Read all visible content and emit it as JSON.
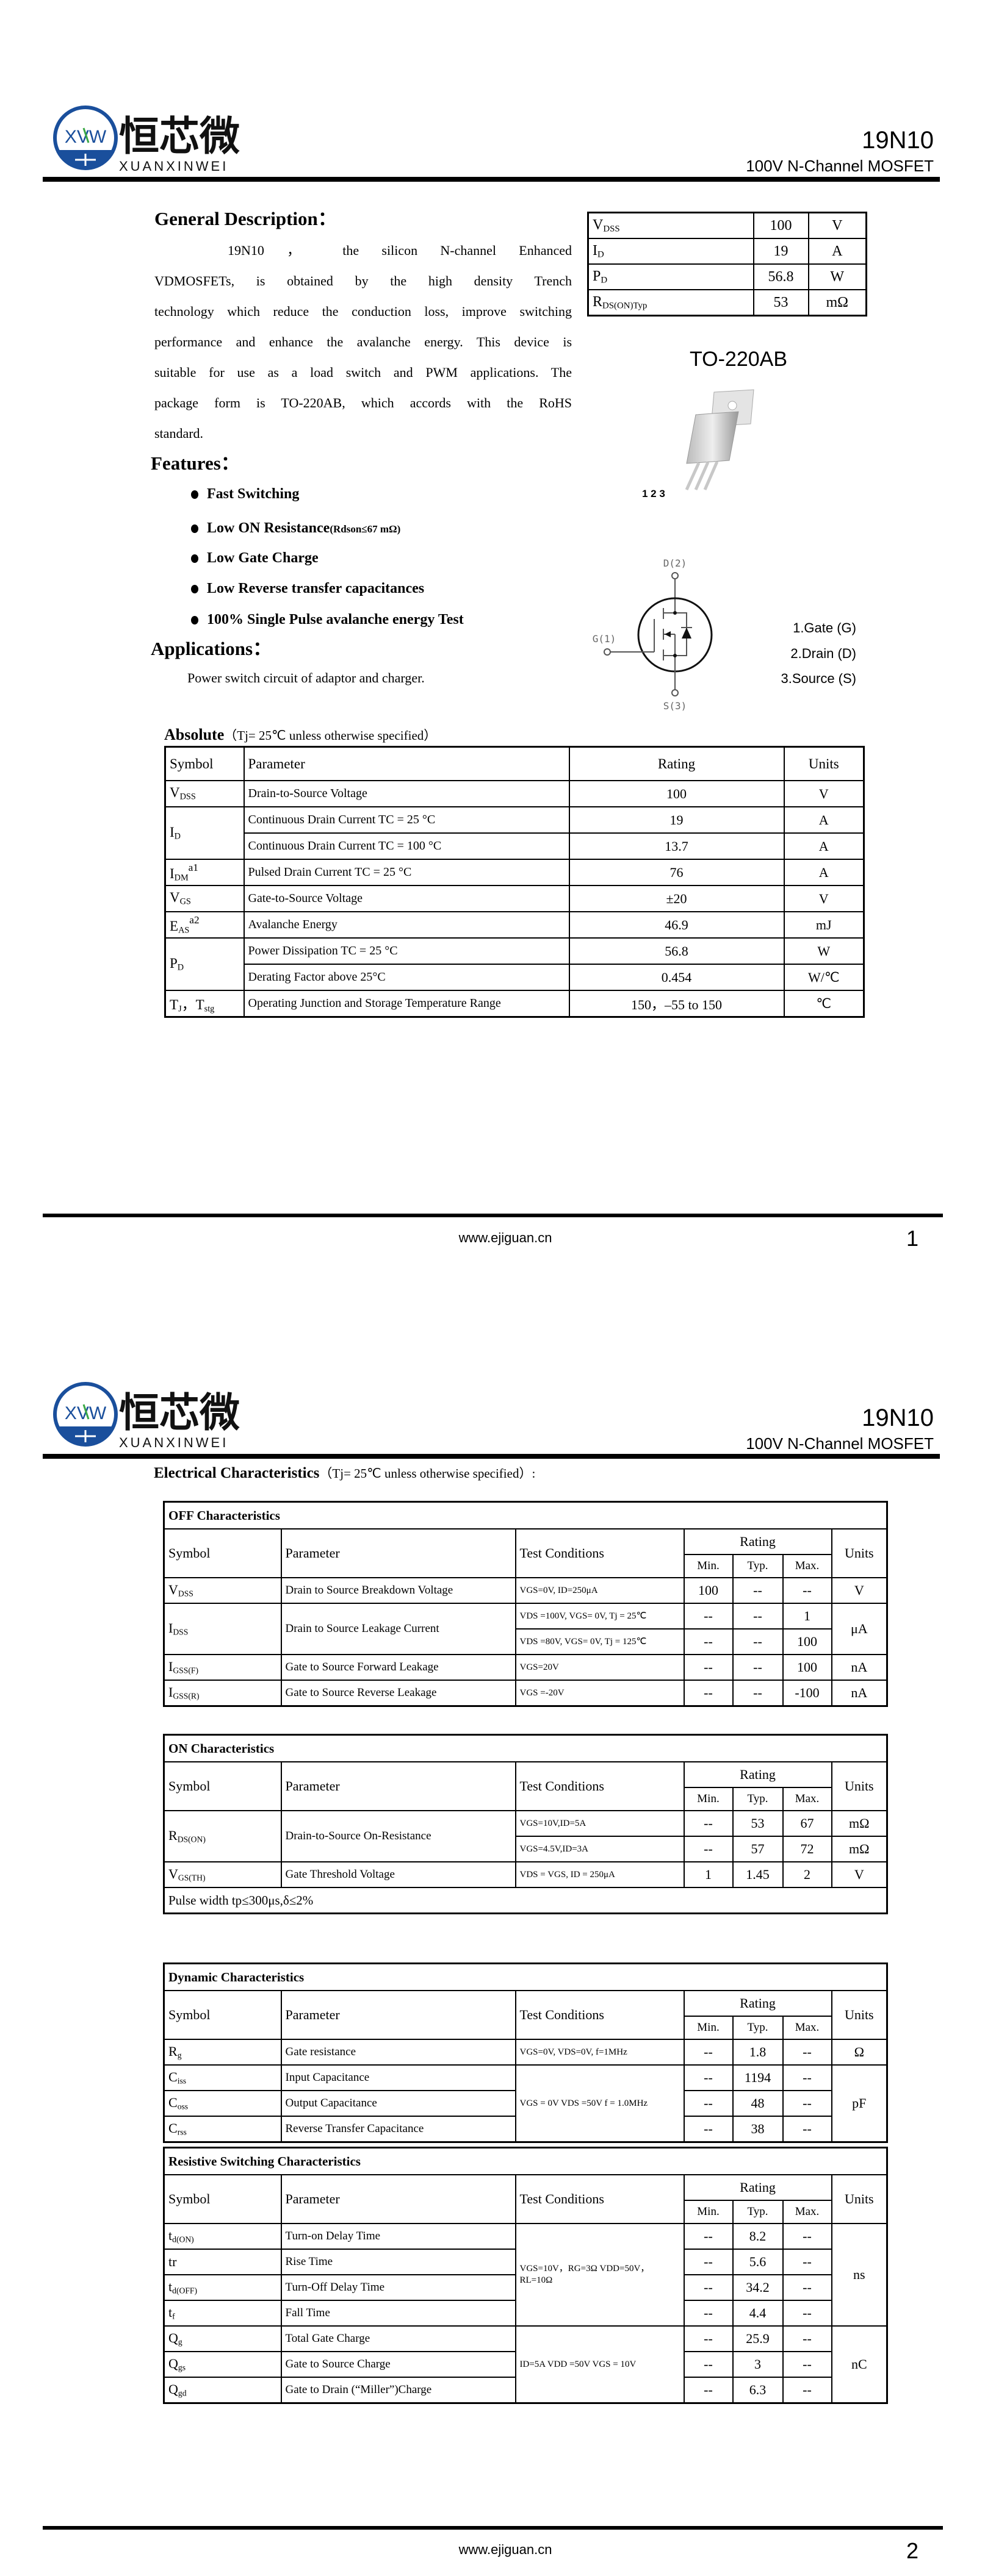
{
  "header": {
    "brand_cn": "恒芯微",
    "brand_en": "XUANXINWEI",
    "brand_mark": "XVW",
    "part_number": "19N10",
    "subtitle": "100V N-Channel MOSFET",
    "brand_color": "#1a4f9c",
    "accent_color": "#3aa845"
  },
  "page1": {
    "general_title": "General Description：",
    "general_lines": [
      "19N10 ， the silicon N-channel Enhanced",
      "VDMOSFETs, is obtained by the high density Trench",
      "technology which reduce the conduction loss, improve switching",
      "performance and enhance the avalanche energy. This device is",
      "suitable for use as a load switch and PWM applications. The",
      "package form is TO-220AB, which accords with the RoHS",
      "standard."
    ],
    "key_specs": [
      {
        "m": "V",
        "s": "DSS",
        "value": "100",
        "unit": "V"
      },
      {
        "m": "I",
        "s": "D",
        "value": "19",
        "unit": "A"
      },
      {
        "m": "P",
        "s": "D",
        "value": "56.8",
        "unit": "W"
      },
      {
        "m": "R",
        "s": "DS(ON)Typ",
        "value": "53",
        "unit": "mΩ"
      }
    ],
    "package": "TO-220AB",
    "package_pins": "1 2 3",
    "features_title": "Features：",
    "features": [
      {
        "text": "Fast Switching",
        "note": ""
      },
      {
        "text": "Low ON Resistance",
        "note": "(Rdson≤67 mΩ)"
      },
      {
        "text": "Low Gate Charge",
        "note": ""
      },
      {
        "text": "Low Reverse transfer capacitances",
        "note": ""
      },
      {
        "text": "100% Single Pulse avalanche energy Test",
        "note": ""
      }
    ],
    "applications_title": "Applications：",
    "applications_text": "Power switch circuit of adaptor and charger.",
    "symbol_labels": {
      "drain": "D(2)",
      "gate": "G(1)",
      "source": "S(3)"
    },
    "pins": [
      "1.Gate (G)",
      "2.Drain (D)",
      "3.Source (S)"
    ],
    "absolute": {
      "title_bold": "Absolute",
      "title_rest": "（Tj= 25℃  unless otherwise specified）",
      "headers": [
        "Symbol",
        "Parameter",
        "Rating",
        "Units"
      ],
      "groups": [
        {
          "shared": {
            "sym": {
              "m": "V",
              "s": "DSS"
            }
          },
          "rows": [
            {
              "param": "Drain-to-Source Voltage",
              "rating": "100",
              "unit": "V"
            }
          ]
        },
        {
          "shared": {
            "sym": {
              "m": "I",
              "s": "D"
            }
          },
          "rows": [
            {
              "param": "Continuous Drain Current TC = 25 °C",
              "rating": "19",
              "unit": "A"
            },
            {
              "param": "Continuous Drain Current TC = 100 °C",
              "rating": "13.7",
              "unit": "A"
            }
          ]
        },
        {
          "shared": {
            "sym": {
              "m": "I",
              "s": "DM",
              "sup": "a1"
            }
          },
          "rows": [
            {
              "param": "Pulsed Drain Current TC = 25 °C",
              "rating": "76",
              "unit": "A"
            }
          ]
        },
        {
          "shared": {
            "sym": {
              "m": "V",
              "s": "GS"
            }
          },
          "rows": [
            {
              "param": "Gate-to-Source Voltage",
              "rating": "±20",
              "unit": "V"
            }
          ]
        },
        {
          "shared": {
            "sym": {
              "m": "E",
              "s": "AS",
              "sup": "a2"
            }
          },
          "rows": [
            {
              "param": "Avalanche Energy",
              "rating": "46.9",
              "unit": "mJ"
            }
          ]
        },
        {
          "shared": {
            "sym": {
              "m": "P",
              "s": "D"
            }
          },
          "rows": [
            {
              "param": "Power Dissipation TC = 25 °C",
              "rating": "56.8",
              "unit": "W"
            },
            {
              "param": "Derating Factor above 25°C",
              "rating": "0.454",
              "unit": "W/℃"
            }
          ]
        },
        {
          "shared": {
            "sym": {
              "m": "T",
              "s": "J",
              "m2": "，T",
              "s2": "stg"
            }
          },
          "rows": [
            {
              "param": "Operating Junction and Storage Temperature Range",
              "rating": "150，–55 to 150",
              "unit": "℃"
            }
          ]
        }
      ]
    },
    "footer_url": "www.ejiguan.cn",
    "page_number": "1"
  },
  "page2": {
    "elec_title_bold": "Electrical Characteristics",
    "elec_title_rest": "（Tj= 25℃ unless otherwise specified）:",
    "headers": {
      "symbol": "Symbol",
      "parameter": "Parameter",
      "conditions": "Test Conditions",
      "rating": "Rating",
      "min": "Min.",
      "typ": "Typ.",
      "max": "Max.",
      "units": "Units"
    },
    "tables": [
      {
        "title": "OFF Characteristics",
        "note": "",
        "groups": [
          {
            "shared": {},
            "rows": [
              {
                "sym": {
                  "m": "V",
                  "s": "DSS"
                },
                "param": "Drain to Source Breakdown Voltage",
                "cond": "VGS=0V, ID=250μA",
                "min": "100",
                "typ": "--",
                "max": "--",
                "unit": "V"
              }
            ]
          },
          {
            "shared": {
              "sym": {
                "m": "I",
                "s": "DSS"
              },
              "param": "Drain to Source Leakage Current",
              "unit": "μA"
            },
            "rows": [
              {
                "cond": "VDS =100V, VGS= 0V, Tj = 25℃",
                "min": "--",
                "typ": "--",
                "max": "1"
              },
              {
                "cond": "VDS =80V, VGS= 0V, Tj = 125℃",
                "min": "--",
                "typ": "--",
                "max": "100"
              }
            ]
          },
          {
            "shared": {},
            "rows": [
              {
                "sym": {
                  "m": "I",
                  "s": "GSS(F)"
                },
                "param": "Gate to Source Forward Leakage",
                "cond": "VGS=20V",
                "min": "--",
                "typ": "--",
                "max": "100",
                "unit": "nA"
              }
            ]
          },
          {
            "shared": {},
            "rows": [
              {
                "sym": {
                  "m": "I",
                  "s": "GSS(R)"
                },
                "param": "Gate to Source Reverse Leakage",
                "cond": "VGS =-20V",
                "min": "--",
                "typ": "--",
                "max": "-100",
                "unit": "nA"
              }
            ]
          }
        ]
      },
      {
        "title": "ON Characteristics",
        "note": "Pulse width tp≤300μs,δ≤2%",
        "groups": [
          {
            "shared": {
              "sym": {
                "m": "R",
                "s": "DS(ON)"
              },
              "param": "Drain-to-Source On-Resistance"
            },
            "rows": [
              {
                "cond": "VGS=10V,ID=5A",
                "min": "--",
                "typ": "53",
                "max": "67",
                "unit": "mΩ"
              },
              {
                "cond": "VGS=4.5V,ID=3A",
                "min": "--",
                "typ": "57",
                "max": "72",
                "unit": "mΩ"
              }
            ]
          },
          {
            "shared": {},
            "rows": [
              {
                "sym": {
                  "m": "V",
                  "s": "GS(TH)"
                },
                "param": "Gate Threshold Voltage",
                "cond": "VDS = VGS, ID = 250μA",
                "min": "1",
                "typ": "1.45",
                "max": "2",
                "unit": "V"
              }
            ]
          }
        ]
      },
      {
        "title": "Dynamic Characteristics",
        "note": "",
        "groups": [
          {
            "shared": {},
            "rows": [
              {
                "sym": {
                  "m": "R",
                  "s": "g"
                },
                "param": "Gate resistance",
                "cond": "VGS=0V, VDS=0V, f=1MHz",
                "min": "--",
                "typ": "1.8",
                "max": "--",
                "unit": "Ω"
              }
            ]
          },
          {
            "shared": {
              "cond": "VGS = 0V VDS =50V f = 1.0MHz",
              "unit": "pF"
            },
            "rows": [
              {
                "sym": {
                  "m": "C",
                  "s": "iss"
                },
                "param": "Input Capacitance",
                "min": "--",
                "typ": "1194",
                "max": "--"
              },
              {
                "sym": {
                  "m": "C",
                  "s": "oss"
                },
                "param": "Output Capacitance",
                "min": "--",
                "typ": "48",
                "max": "--"
              },
              {
                "sym": {
                  "m": "C",
                  "s": "rss"
                },
                "param": "Reverse Transfer Capacitance",
                "min": "--",
                "typ": "38",
                "max": "--"
              }
            ]
          }
        ]
      },
      {
        "title": "Resistive Switching Characteristics",
        "note": "",
        "groups": [
          {
            "shared": {
              "cond": "VGS=10V，RG=3Ω VDD=50V，RL=10Ω",
              "unit": "ns"
            },
            "rows": [
              {
                "sym": {
                  "m": "t",
                  "s": "d(ON)"
                },
                "param": "Turn-on Delay Time",
                "min": "--",
                "typ": "8.2",
                "max": "--"
              },
              {
                "sym": {
                  "m": "tr",
                  "s": ""
                },
                "param": "Rise Time",
                "min": "--",
                "typ": "5.6",
                "max": "--"
              },
              {
                "sym": {
                  "m": "t",
                  "s": "d(OFF)"
                },
                "param": "Turn-Off Delay Time",
                "min": "--",
                "typ": "34.2",
                "max": "--"
              },
              {
                "sym": {
                  "m": "t",
                  "s": "f"
                },
                "param": "Fall Time",
                "min": "--",
                "typ": "4.4",
                "max": "--"
              }
            ]
          },
          {
            "shared": {
              "cond": "ID=5A    VDD =50V VGS = 10V",
              "unit": "nC"
            },
            "rows": [
              {
                "sym": {
                  "m": "Q",
                  "s": "g"
                },
                "param": "Total Gate Charge",
                "min": "--",
                "typ": "25.9",
                "max": "--"
              },
              {
                "sym": {
                  "m": "Q",
                  "s": "gs"
                },
                "param": "Gate to Source Charge",
                "min": "--",
                "typ": "3",
                "max": "--"
              },
              {
                "sym": {
                  "m": "Q",
                  "s": "gd"
                },
                "param": "Gate to Drain (“Miller”)Charge",
                "min": "--",
                "typ": "6.3",
                "max": "--"
              }
            ]
          }
        ]
      }
    ],
    "footer_url": "www.ejiguan.cn",
    "page_number": "2"
  }
}
